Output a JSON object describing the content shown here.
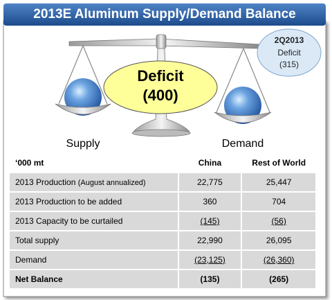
{
  "header": {
    "title": "2013E Aluminum Supply/Demand Balance"
  },
  "badge": {
    "period": "2Q2013",
    "label": "Deficit",
    "value": "(315)"
  },
  "scale": {
    "label": "Deficit",
    "value": "(400)",
    "left": "Supply",
    "right": "Demand"
  },
  "table": {
    "header": [
      "‘000 mt",
      "China",
      "Rest of World"
    ],
    "rows": [
      {
        "label": "2013 Production",
        "note": "(August annualized)",
        "china": "22,775",
        "rest": "25,447"
      },
      {
        "label": "2013 Production to be added",
        "china": "360",
        "rest": "704"
      },
      {
        "label": "2013 Capacity to be curtailed",
        "china": "(145)",
        "rest": "(56)"
      },
      {
        "label": "Total supply",
        "china": "22,990",
        "rest": "26,095"
      },
      {
        "label": "Demand",
        "china": "(23,125)",
        "rest": "(26,360)"
      },
      {
        "label": "Net Balance",
        "china": "(135)",
        "rest": "(265)"
      }
    ]
  }
}
